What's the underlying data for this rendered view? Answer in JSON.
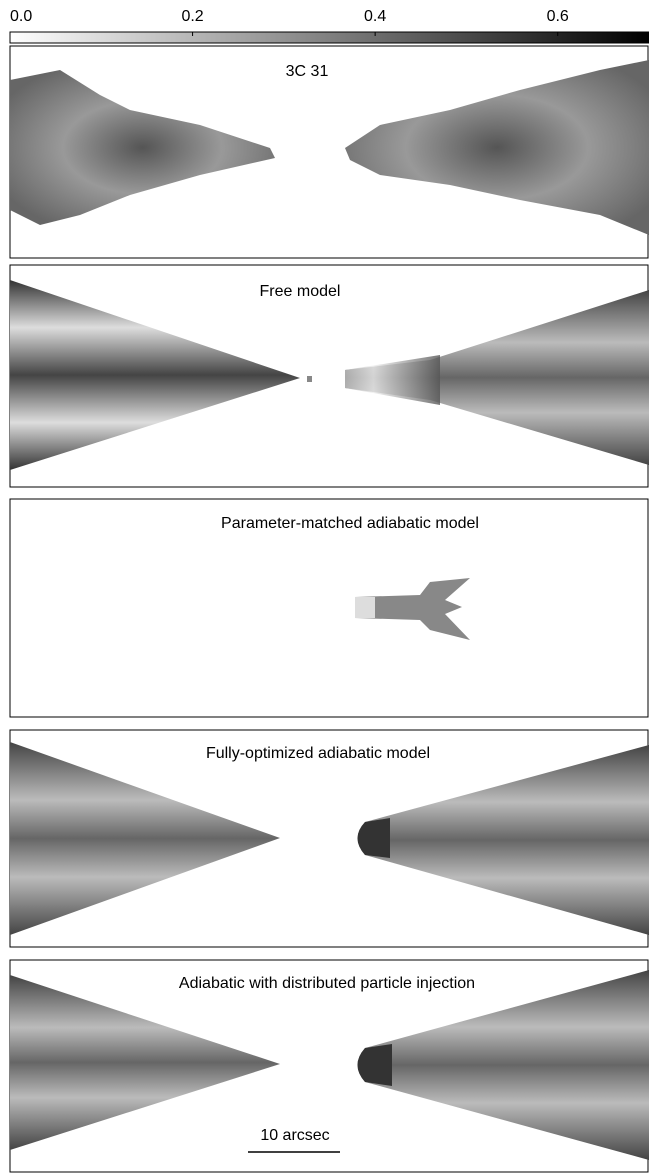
{
  "colorbar": {
    "lim": [
      0,
      0.7
    ],
    "ticks": [
      {
        "value": 0,
        "label": "0.0"
      },
      {
        "value": 0.2,
        "label": "0.2"
      },
      {
        "value": 0.4,
        "label": "0.4"
      },
      {
        "value": 0.6,
        "label": "0.6"
      }
    ]
  },
  "panels": [
    {
      "title": "3C 31"
    },
    {
      "title": "Free model"
    },
    {
      "title": "Parameter-matched adiabatic model"
    },
    {
      "title": "Fully-optimized adiabatic model"
    },
    {
      "title": "Adiabatic with distributed particle injection"
    }
  ],
  "scale_bar": {
    "label": "10 arcsec"
  }
}
